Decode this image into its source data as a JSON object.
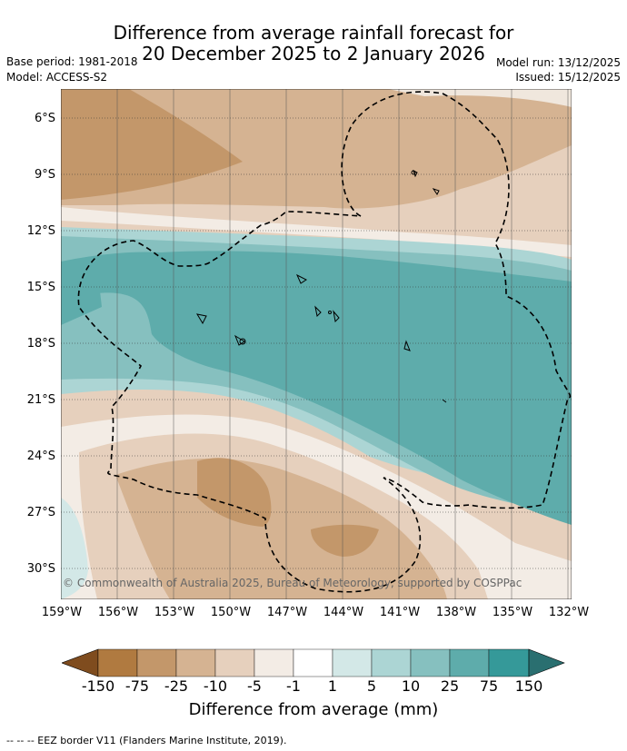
{
  "title": {
    "line1": "Difference from average rainfall forecast for",
    "line2": "20 December 2025 to 2 January 2026"
  },
  "meta": {
    "base_period": "Base period: 1981-2018",
    "model": "Model: ACCESS-S2",
    "model_run": "Model run: 13/12/2025",
    "issued": "Issued: 15/12/2025"
  },
  "map": {
    "lat_labels": [
      "6°S",
      "9°S",
      "12°S",
      "15°S",
      "18°S",
      "21°S",
      "24°S",
      "27°S",
      "30°S"
    ],
    "lon_labels": [
      "159°W",
      "156°W",
      "153°W",
      "150°W",
      "147°W",
      "144°W",
      "141°W",
      "138°W",
      "135°W",
      "132°W"
    ],
    "copyright": "© Commonwealth of Australia 2025, Bureau of Meteorology, supported by COSPPac"
  },
  "colorbar": {
    "ticks": [
      "-150",
      "-75",
      "-25",
      "-10",
      "-5",
      "-1",
      "1",
      "5",
      "10",
      "25",
      "75",
      "150"
    ],
    "label": "Difference from average (mm)",
    "colors": [
      "#7f4c1e",
      "#b07a40",
      "#c3976a",
      "#d5b392",
      "#e6d0bd",
      "#f3ece5",
      "#ffffff",
      "#d3e8e7",
      "#acd5d4",
      "#86c0bf",
      "#5eacab",
      "#359999",
      "#2a6f70"
    ]
  },
  "legend": {
    "eez": "-- --  -- EEZ border V11 (Flanders Marine Institute, 2019)."
  }
}
